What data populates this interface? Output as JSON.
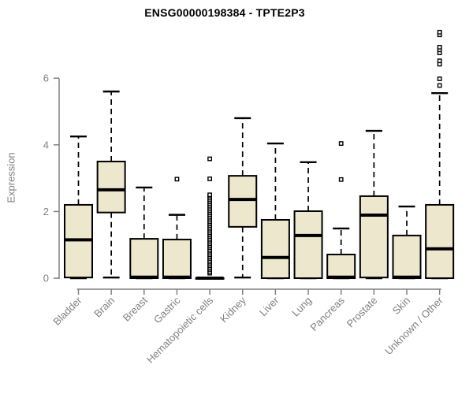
{
  "title": "ENSG00000198384 - TPTE2P3",
  "chart_data": {
    "type": "boxplot",
    "title": "ENSG00000198384 - TPTE2P3",
    "xlabel": "",
    "ylabel": "Expression",
    "ylim": [
      0,
      7.4
    ],
    "yticks": [
      0,
      2,
      4,
      6
    ],
    "grid": false,
    "legend": "none",
    "categories": [
      "Bladder",
      "Brain",
      "Breast",
      "Gastric",
      "Hematopoietic cells",
      "Kidney",
      "Liver",
      "Lung",
      "Pancreas",
      "Prostate",
      "Skin",
      "Unknown / Other"
    ],
    "boxes": [
      {
        "category": "Bladder",
        "whisker_low": 0,
        "q1": 0.02,
        "median": 1.15,
        "q3": 2.2,
        "whisker_high": 4.25,
        "outliers": []
      },
      {
        "category": "Brain",
        "whisker_low": 0.02,
        "q1": 1.97,
        "median": 2.65,
        "q3": 3.5,
        "whisker_high": 5.6,
        "outliers": []
      },
      {
        "category": "Breast",
        "whisker_low": 0,
        "q1": 0,
        "median": 0.03,
        "q3": 1.18,
        "whisker_high": 2.72,
        "outliers": []
      },
      {
        "category": "Gastric",
        "whisker_low": 0,
        "q1": 0,
        "median": 0.03,
        "q3": 1.16,
        "whisker_high": 1.9,
        "outliers": [
          2.97
        ]
      },
      {
        "category": "Hematopoietic cells",
        "whisker_low": 0,
        "q1": 0,
        "median": 0,
        "q3": 0,
        "whisker_high": 0,
        "outliers": [
          0.15,
          0.2,
          0.26,
          0.31,
          0.37,
          0.42,
          0.48,
          0.53,
          0.59,
          0.64,
          0.7,
          0.75,
          0.81,
          0.86,
          0.92,
          0.97,
          1.03,
          1.08,
          1.14,
          1.19,
          1.25,
          1.3,
          1.36,
          1.41,
          1.47,
          1.52,
          1.58,
          1.63,
          1.69,
          1.74,
          1.8,
          1.85,
          1.91,
          1.96,
          2.02,
          2.07,
          2.13,
          2.18,
          2.24,
          2.29,
          2.35,
          2.4,
          2.46,
          2.5,
          2.98,
          3.58
        ]
      },
      {
        "category": "Kidney",
        "whisker_low": 0.02,
        "q1": 1.54,
        "median": 2.36,
        "q3": 3.07,
        "whisker_high": 4.8,
        "outliers": []
      },
      {
        "category": "Liver",
        "whisker_low": 0,
        "q1": 0,
        "median": 0.62,
        "q3": 1.75,
        "whisker_high": 4.04,
        "outliers": []
      },
      {
        "category": "Lung",
        "whisker_low": 0,
        "q1": 0,
        "median": 1.28,
        "q3": 2.01,
        "whisker_high": 3.48,
        "outliers": []
      },
      {
        "category": "Pancreas",
        "whisker_low": 0,
        "q1": 0,
        "median": 0.03,
        "q3": 0.71,
        "whisker_high": 1.49,
        "outliers": [
          2.96,
          4.04
        ]
      },
      {
        "category": "Prostate",
        "whisker_low": 0,
        "q1": 0.02,
        "median": 1.89,
        "q3": 2.46,
        "whisker_high": 4.42,
        "outliers": []
      },
      {
        "category": "Skin",
        "whisker_low": 0,
        "q1": 0,
        "median": 0.03,
        "q3": 1.28,
        "whisker_high": 2.15,
        "outliers": []
      },
      {
        "category": "Unknown / Other",
        "whisker_low": 0,
        "q1": 0,
        "median": 0.88,
        "q3": 2.2,
        "whisker_high": 5.55,
        "outliers": [
          5.78,
          5.98,
          6.42,
          6.52,
          6.76,
          6.85,
          6.93,
          7.3,
          7.38
        ]
      }
    ],
    "colors": {
      "box_fill": "#EDE7CE",
      "box_stroke": "#000000",
      "median": "#000000",
      "axis": "#808080",
      "tick_text": "#808080",
      "title_text": "#000000",
      "background": "#ffffff"
    }
  }
}
